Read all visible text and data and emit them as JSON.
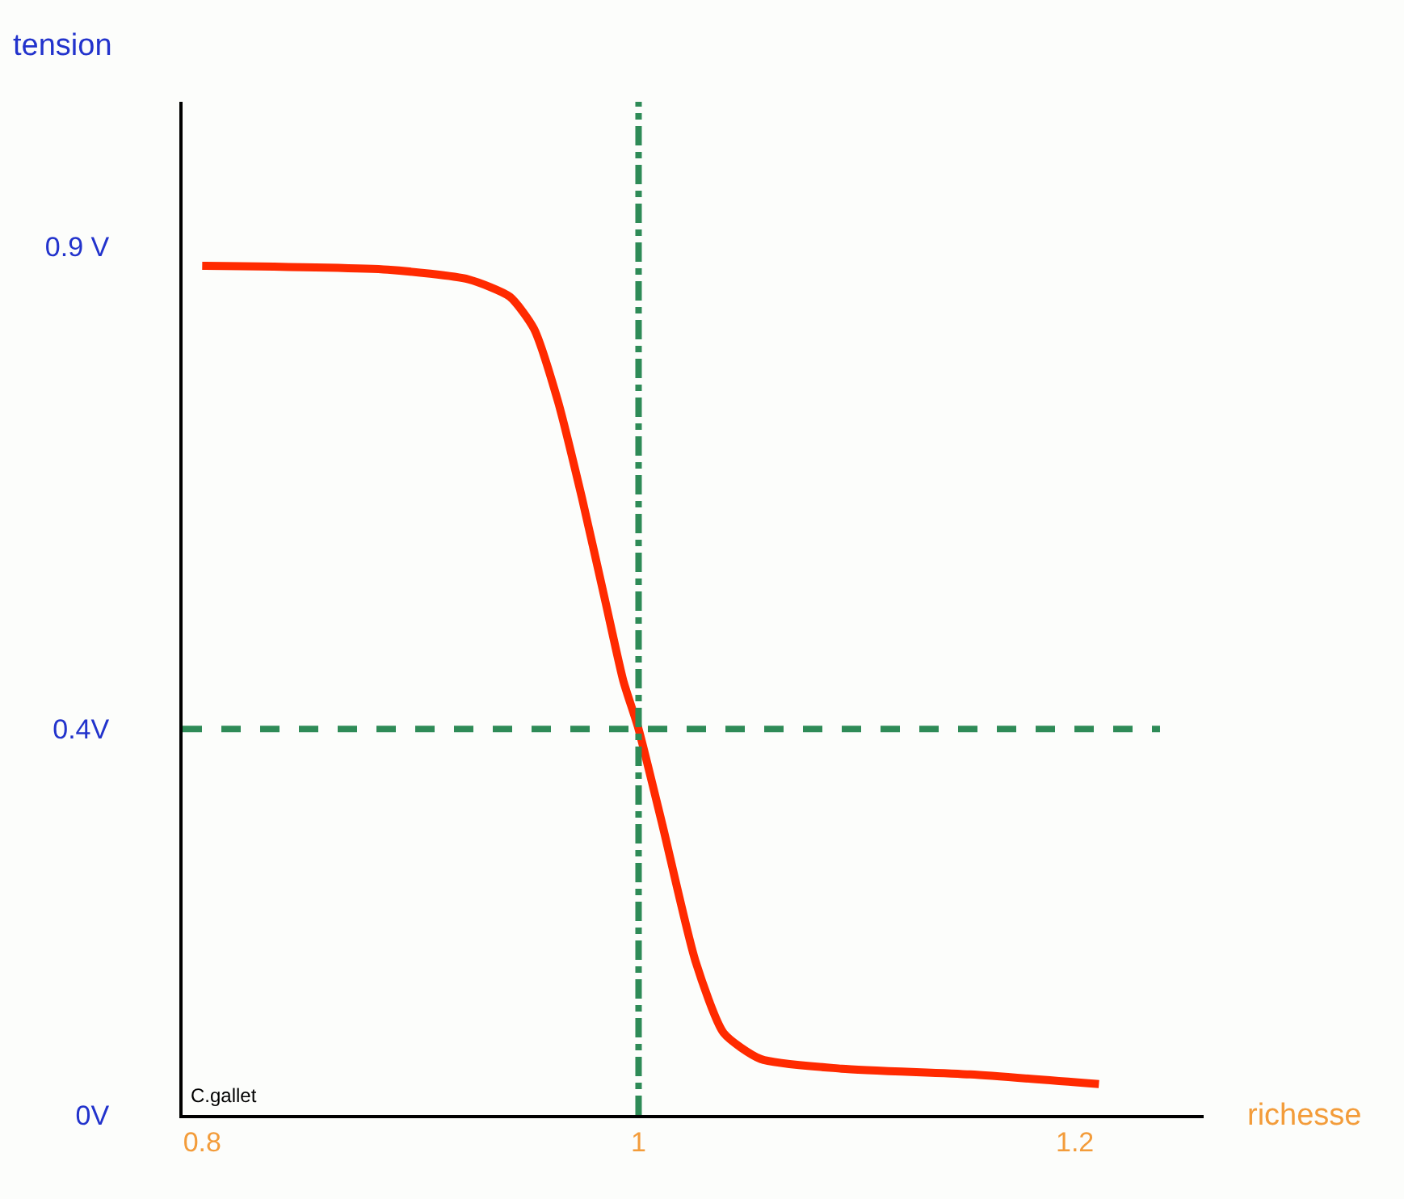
{
  "chart_data": {
    "type": "line",
    "xlabel": "richesse",
    "ylabel": "tension",
    "x": [
      0.8,
      0.885,
      0.922,
      0.941,
      0.952,
      0.963,
      0.974,
      0.985,
      0.993,
      1.0,
      1.011,
      1.026,
      1.039,
      1.056,
      1.093,
      1.152,
      1.211
    ],
    "series": [
      {
        "color": "#ff2a00",
        "values": [
          0.88,
          0.876,
          0.866,
          0.848,
          0.815,
          0.74,
          0.64,
          0.53,
          0.45,
          0.4,
          0.3,
          0.16,
          0.085,
          0.058,
          0.048,
          0.042,
          0.032
        ]
      }
    ],
    "xlim": [
      0.791,
      1.259
    ],
    "ylim": [
      0,
      1.05
    ],
    "xticks": [
      0.8,
      1,
      1.2
    ],
    "yticks": [
      {
        "value": 0,
        "label": "0V"
      },
      {
        "value": 0.4,
        "label": "0.4V"
      },
      {
        "value": 0.9,
        "label": "0.9 V"
      }
    ],
    "ref_lines": [
      {
        "axis": "x",
        "value": 1,
        "color": "#2e8b57",
        "line_style": "dashdot"
      },
      {
        "axis": "y",
        "value": 0.4,
        "color": "#2e8b57",
        "line_style": "dashed"
      }
    ],
    "annotations": [
      "C.gallet"
    ],
    "marker": "none",
    "line_style": "solid"
  }
}
